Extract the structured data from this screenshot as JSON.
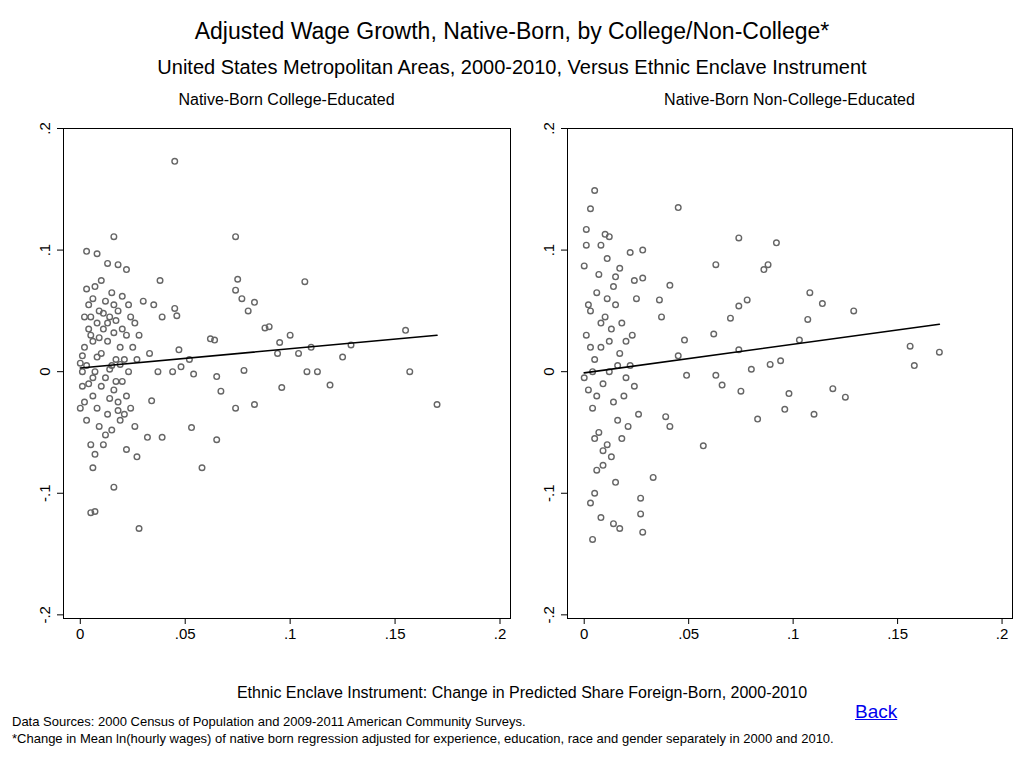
{
  "title": "Adjusted Wage Growth, Native-Born, by College/Non-College*",
  "subtitle": "United States Metropolitan Areas, 2000-2010, Versus Ethnic Enclave Instrument",
  "xlabel": "Ethnic Enclave Instrument: Change in Predicted Share Foreign-Born, 2000-2010",
  "link": "Back",
  "notes": [
    "Data Sources: 2000 Census of Population and 2009-2011 American Community Surveys.",
    "*Change in Mean ln(hourly wages) of native born regression adjusted for experience, education, race and gender separately in 2000 and 2010."
  ],
  "chart_data": [
    {
      "type": "scatter",
      "title": "Native-Born College-Educated",
      "xlim": [
        -0.008,
        0.205
      ],
      "ylim": [
        -0.203,
        0.2
      ],
      "xticks": [
        0,
        {
          "value": 0.05,
          "label": ".05"
        },
        {
          "value": 0.1,
          "label": ".1"
        },
        {
          "value": 0.15,
          "label": ".15"
        },
        {
          "value": 0.2,
          "label": ".2"
        }
      ],
      "yticks": [
        {
          "value": -0.2,
          "label": "-.2"
        },
        {
          "value": -0.1,
          "label": "-.1"
        },
        0,
        {
          "value": 0.1,
          "label": ".1"
        },
        {
          "value": 0.2,
          "label": ".2"
        }
      ],
      "grid": false,
      "series": [
        {
          "type": "scatter",
          "marker": "circle",
          "color": "#666666",
          "x": [
            0.045,
            0.074,
            0.016,
            0.003,
            0.008,
            0.013,
            0.018,
            0.022,
            0.107,
            0.038,
            0.075,
            0.074,
            0.077,
            0.08,
            0.03,
            0.035,
            0.045,
            0.046,
            0.083,
            0.039,
            0.062,
            0.064,
            0.088,
            0.09,
            0.1,
            0.095,
            0.094,
            0.104,
            0.11,
            0.108,
            0.113,
            0.119,
            0.125,
            0.129,
            0.155,
            0.157,
            0.17,
            0.096,
            0.083,
            0.074,
            0.078,
            0.065,
            0.067,
            0.052,
            0.054,
            0.048,
            0.044,
            0.037,
            0.034,
            0.032,
            0.039,
            0.053,
            0.065,
            0.058,
            0.027,
            0.028,
            0.016,
            0.006,
            0.005,
            0.007,
            0.022,
            0.033,
            0.047,
            0.001,
            0.002,
            0.003,
            0.004,
            0.005,
            0.005,
            0.006,
            0.006,
            0.007,
            0.007,
            0.008,
            0.008,
            0.009,
            0.009,
            0.01,
            0.01,
            0.011,
            0.011,
            0.012,
            0.012,
            0.013,
            0.013,
            0.014,
            0.014,
            0.015,
            0.015,
            0.016,
            0.016,
            0.017,
            0.017,
            0.018,
            0.018,
            0.019,
            0.019,
            0.02,
            0.02,
            0.021,
            0.022,
            0.022,
            0.023,
            0.023,
            0.024,
            0.024,
            0.025,
            0.026,
            0.026,
            0.027,
            0.028,
            0.003,
            0.004,
            0.002,
            0.001,
            0.006,
            0.008,
            0.01,
            0.012,
            0.014,
            0.016,
            0.018,
            0.02,
            0.0,
            0.003,
            0.005,
            0.007,
            0.009,
            0.011,
            0.013,
            0.015,
            0.017,
            0.019,
            0.021,
            0.004,
            0.006,
            0.002,
            0.001,
            0.0
          ],
          "values": [
            0.173,
            0.111,
            0.111,
            0.099,
            0.097,
            0.089,
            0.088,
            0.084,
            0.074,
            0.075,
            0.076,
            0.067,
            0.06,
            0.05,
            0.058,
            0.055,
            0.052,
            0.046,
            0.057,
            0.045,
            0.027,
            0.026,
            0.036,
            0.037,
            0.03,
            0.024,
            0.015,
            0.015,
            0.02,
            0.0,
            0.0,
            -0.011,
            0.012,
            0.022,
            0.034,
            0.0,
            -0.027,
            -0.013,
            -0.027,
            -0.03,
            0.001,
            -0.004,
            -0.016,
            0.01,
            -0.002,
            0.004,
            0.0,
            0.0,
            -0.024,
            -0.054,
            -0.054,
            -0.046,
            -0.056,
            -0.079,
            -0.07,
            -0.129,
            -0.095,
            -0.079,
            -0.116,
            -0.115,
            -0.064,
            0.015,
            0.018,
            0.013,
            0.02,
            0.005,
            -0.01,
            0.03,
            0.045,
            0.06,
            -0.02,
            0.07,
            0.0,
            -0.03,
            0.04,
            0.05,
            -0.045,
            0.075,
            0.015,
            -0.06,
            0.035,
            0.058,
            -0.005,
            0.025,
            -0.035,
            0.045,
            0.002,
            -0.048,
            0.065,
            0.032,
            -0.015,
            0.01,
            0.042,
            -0.025,
            0.05,
            0.02,
            -0.04,
            0.035,
            -0.008,
            0.01,
            0.03,
            -0.02,
            0.055,
            0.0,
            0.045,
            -0.03,
            0.02,
            -0.045,
            0.04,
            0.01,
            0.03,
            -0.04,
            0.055,
            -0.025,
            0.0,
            0.025,
            0.012,
            -0.012,
            -0.052,
            -0.022,
            0.055,
            -0.032,
            0.062,
            0.007,
            0.068,
            -0.06,
            -0.068,
            0.028,
            0.048,
            0.04,
            0.005,
            -0.008,
            0.006,
            -0.035,
            0.035,
            -0.005,
            0.045,
            -0.012,
            -0.03
          ]
        },
        {
          "type": "line",
          "line_style": "solid",
          "color": "#000000",
          "x": [
            0,
            0.17
          ],
          "values": [
            0.003,
            0.03
          ]
        }
      ]
    },
    {
      "type": "scatter",
      "title": "Native-Born Non-College-Educated",
      "xlim": [
        -0.008,
        0.205
      ],
      "ylim": [
        -0.203,
        0.2
      ],
      "xticks": [
        0,
        {
          "value": 0.05,
          "label": ".05"
        },
        {
          "value": 0.1,
          "label": ".1"
        },
        {
          "value": 0.15,
          "label": ".15"
        },
        {
          "value": 0.2,
          "label": ".2"
        }
      ],
      "yticks": [
        {
          "value": -0.2,
          "label": "-.2"
        },
        {
          "value": -0.1,
          "label": "-.1"
        },
        0,
        {
          "value": 0.1,
          "label": ".1"
        },
        {
          "value": 0.2,
          "label": ".2"
        }
      ],
      "grid": false,
      "series": [
        {
          "type": "scatter",
          "marker": "circle",
          "color": "#666666",
          "x": [
            0.005,
            0.003,
            0.045,
            0.001,
            0.01,
            0.012,
            0.074,
            0.092,
            0.001,
            0.008,
            0.028,
            0.022,
            0.088,
            0.086,
            0.063,
            0.011,
            0.017,
            0.0,
            0.024,
            0.028,
            0.015,
            0.041,
            0.036,
            0.078,
            0.074,
            0.07,
            0.108,
            0.114,
            0.107,
            0.129,
            0.103,
            0.156,
            0.17,
            0.158,
            0.074,
            0.062,
            0.048,
            0.045,
            0.049,
            0.063,
            0.066,
            0.075,
            0.08,
            0.083,
            0.096,
            0.098,
            0.11,
            0.119,
            0.125,
            0.057,
            0.039,
            0.041,
            0.033,
            0.027,
            0.027,
            0.028,
            0.004,
            0.008,
            0.014,
            0.017,
            0.003,
            0.005,
            0.015,
            0.009,
            0.006,
            0.037,
            0.094,
            0.089,
            0.001,
            0.002,
            0.003,
            0.004,
            0.005,
            0.006,
            0.007,
            0.008,
            0.009,
            0.01,
            0.011,
            0.012,
            0.013,
            0.014,
            0.015,
            0.016,
            0.017,
            0.018,
            0.019,
            0.02,
            0.021,
            0.022,
            0.023,
            0.024,
            0.025,
            0.026,
            0.003,
            0.005,
            0.007,
            0.009,
            0.011,
            0.013,
            0.004,
            0.006,
            0.008,
            0.012,
            0.016,
            0.02,
            0.002,
            0.0,
            0.018,
            0.014
          ],
          "values": [
            0.149,
            0.134,
            0.135,
            0.117,
            0.113,
            0.111,
            0.11,
            0.106,
            0.104,
            0.104,
            0.1,
            0.098,
            0.088,
            0.084,
            0.088,
            0.093,
            0.085,
            0.087,
            0.075,
            0.077,
            0.078,
            0.071,
            0.059,
            0.059,
            0.054,
            0.044,
            0.065,
            0.056,
            0.043,
            0.05,
            0.026,
            0.021,
            0.016,
            0.005,
            0.018,
            0.031,
            0.026,
            0.013,
            -0.003,
            -0.003,
            -0.011,
            -0.016,
            0.002,
            -0.039,
            -0.031,
            -0.018,
            -0.035,
            -0.014,
            -0.021,
            -0.061,
            -0.037,
            -0.045,
            -0.087,
            -0.104,
            -0.117,
            -0.132,
            -0.138,
            -0.12,
            -0.125,
            -0.129,
            -0.108,
            -0.1,
            -0.091,
            -0.077,
            -0.081,
            0.045,
            0.009,
            0.006,
            0.03,
            -0.015,
            0.05,
            -0.03,
            0.01,
            0.065,
            -0.05,
            0.02,
            -0.01,
            0.045,
            -0.06,
            0.0,
            0.035,
            -0.025,
            0.055,
            -0.04,
            0.015,
            0.04,
            -0.02,
            0.025,
            -0.045,
            0.005,
            0.03,
            -0.012,
            0.06,
            -0.035,
            0.02,
            -0.055,
            0.08,
            -0.065,
            0.06,
            -0.07,
            0.0,
            -0.02,
            0.04,
            0.025,
            0.005,
            -0.005,
            0.055,
            -0.005,
            -0.055,
            0.07
          ]
        },
        {
          "type": "line",
          "line_style": "solid",
          "color": "#000000",
          "x": [
            0,
            0.17
          ],
          "values": [
            -0.001,
            0.039
          ]
        }
      ]
    }
  ]
}
